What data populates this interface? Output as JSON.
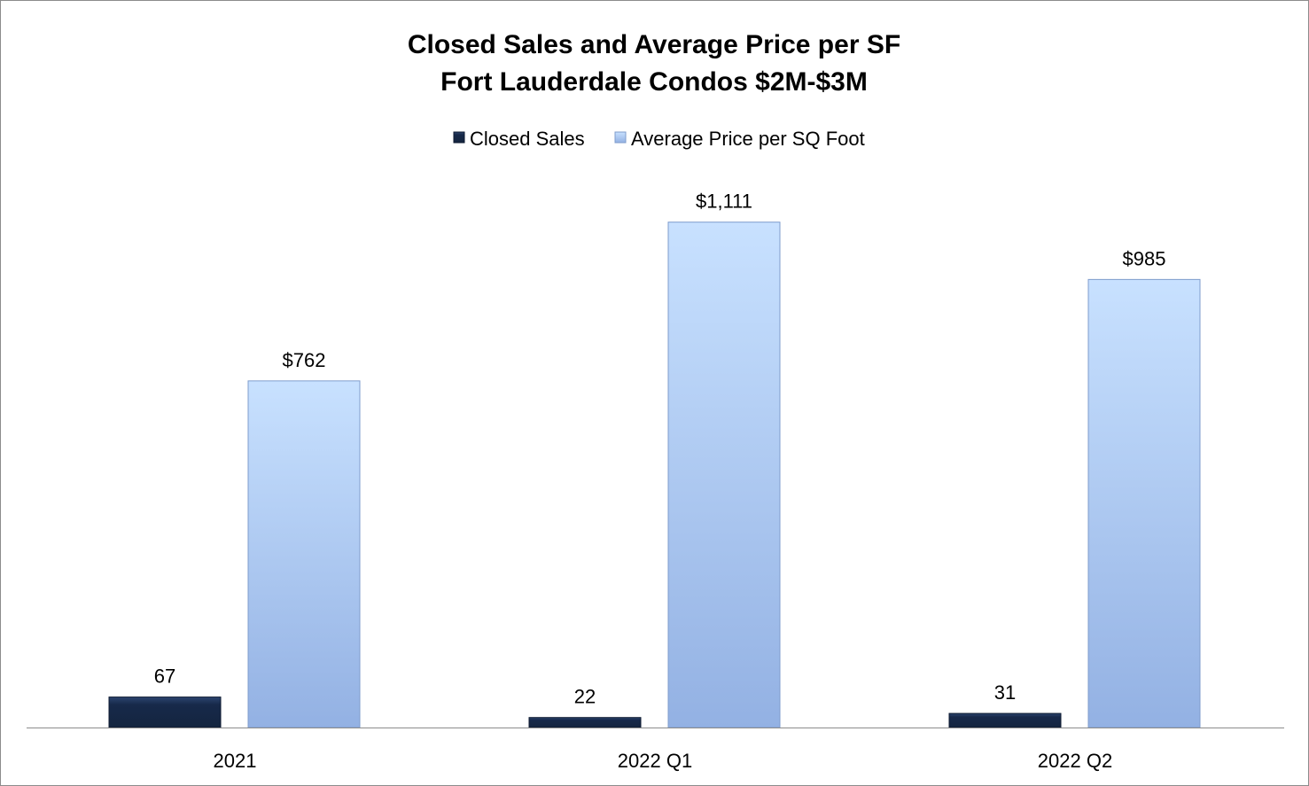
{
  "chart_data": {
    "type": "bar",
    "title": [
      "Closed Sales and Average Price per SF",
      "Fort Lauderdale Condos $2M-$3M"
    ],
    "categories": [
      "2021",
      "2022 Q1",
      "2022 Q2"
    ],
    "series": [
      {
        "name": "Closed Sales",
        "values": [
          67,
          22,
          31
        ],
        "labels": [
          "67",
          "22",
          "31"
        ],
        "color": "#17294a"
      },
      {
        "name": "Average Price per SQ Foot",
        "values": [
          762,
          1111,
          985
        ],
        "labels": [
          "$762",
          "$1,111",
          "$985"
        ],
        "color": "#a9c6f2"
      }
    ],
    "xlabel": "",
    "ylabel": "",
    "ylim": [
      0,
      1200
    ],
    "grid": false,
    "legend": "top-center"
  }
}
